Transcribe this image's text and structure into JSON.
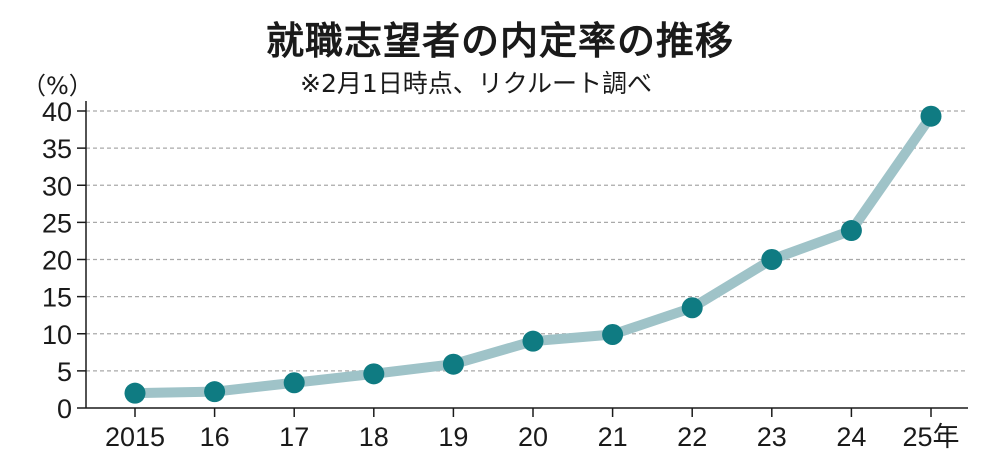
{
  "chart_data": {
    "type": "line",
    "title": "就職志望者の内定率の推移",
    "subtitle": "※2月1日時点、リクルート調べ",
    "y_unit": "（%）",
    "categories": [
      "2015",
      "16",
      "17",
      "18",
      "19",
      "20",
      "21",
      "22",
      "23",
      "24",
      "25年"
    ],
    "series": [
      {
        "values": [
          2.0,
          2.2,
          3.4,
          4.6,
          5.9,
          9.0,
          9.9,
          13.5,
          20.0,
          23.9,
          39.3
        ]
      }
    ],
    "yticks": [
      "0",
      "5",
      "10",
      "15",
      "20",
      "25",
      "30",
      "35",
      "40"
    ],
    "ylim": [
      0,
      40
    ],
    "grid": true,
    "colors": {
      "line": "#9fc3c8",
      "marker": "#0f7b82",
      "grid": "#a9a9a9",
      "axis": "#1a1a1a"
    }
  }
}
